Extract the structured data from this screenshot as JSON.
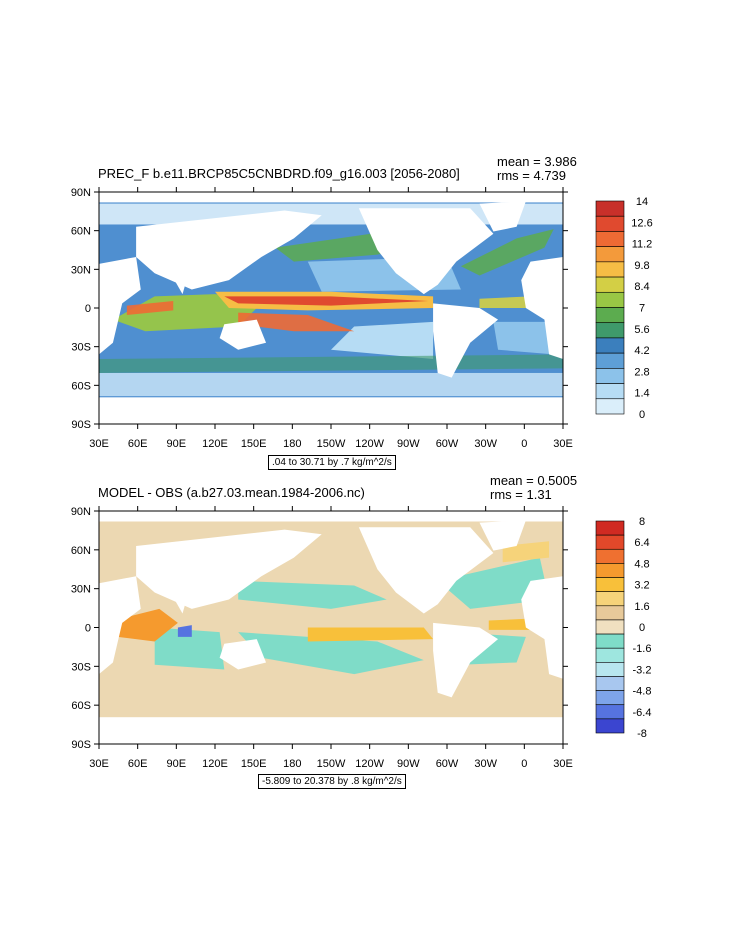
{
  "panels": [
    {
      "title": "PREC_F b.e11.BRCP85C5CNBDRD.f09_g16.003 [2056-2080]",
      "mean_label": "mean = 3.986",
      "rms_label": "rms = 4.739",
      "range_label": ".04 to 30.71 by .7 kg/m^2/s",
      "lat_ticks": [
        "90N",
        "60N",
        "30N",
        "0",
        "30S",
        "60S",
        "90S"
      ],
      "lon_ticks": [
        "30E",
        "60E",
        "90E",
        "120E",
        "150E",
        "180",
        "150W",
        "120W",
        "90W",
        "60W",
        "30W",
        "0",
        "30E"
      ],
      "colorbar_labels": [
        "14",
        "12.6",
        "11.2",
        "9.8",
        "8.4",
        "7",
        "5.6",
        "4.2",
        "2.8",
        "1.4",
        "0"
      ],
      "colorbar_colors": [
        "#c8302a",
        "#e04a2f",
        "#ee6a34",
        "#f39a3b",
        "#f6bd45",
        "#d3cf45",
        "#99c745",
        "#5cac4f",
        "#3f9a6b",
        "#3b7fbd",
        "#5e9fd6",
        "#8cc2ea",
        "#b6dcf4",
        "#daeefa"
      ]
    },
    {
      "title": "MODEL - OBS (a.b27.03.mean.1984-2006.nc)",
      "mean_label": "mean = 0.5005",
      "rms_label": "rms = 1.31",
      "range_label": "-5.809 to 20.378 by .8 kg/m^2/s",
      "lat_ticks": [
        "90N",
        "60N",
        "30N",
        "0",
        "30S",
        "60S",
        "90S"
      ],
      "lon_ticks": [
        "30E",
        "60E",
        "90E",
        "120E",
        "150E",
        "180",
        "150W",
        "120W",
        "90W",
        "60W",
        "30W",
        "0",
        "30E"
      ],
      "colorbar_labels": [
        "8",
        "6.4",
        "4.8",
        "3.2",
        "1.6",
        "0",
        "-1.6",
        "-3.2",
        "-4.8",
        "-6.4",
        "-8"
      ],
      "colorbar_colors": [
        "#d02a22",
        "#e2482a",
        "#ef7030",
        "#f59a2e",
        "#f8c03a",
        "#f6d37a",
        "#e7c99a",
        "#f0e0c0",
        "#7fdcc8",
        "#9ee6df",
        "#b8e6ef",
        "#a8c7ef",
        "#7ea4ea",
        "#5673e0",
        "#3b45d0"
      ]
    }
  ]
}
